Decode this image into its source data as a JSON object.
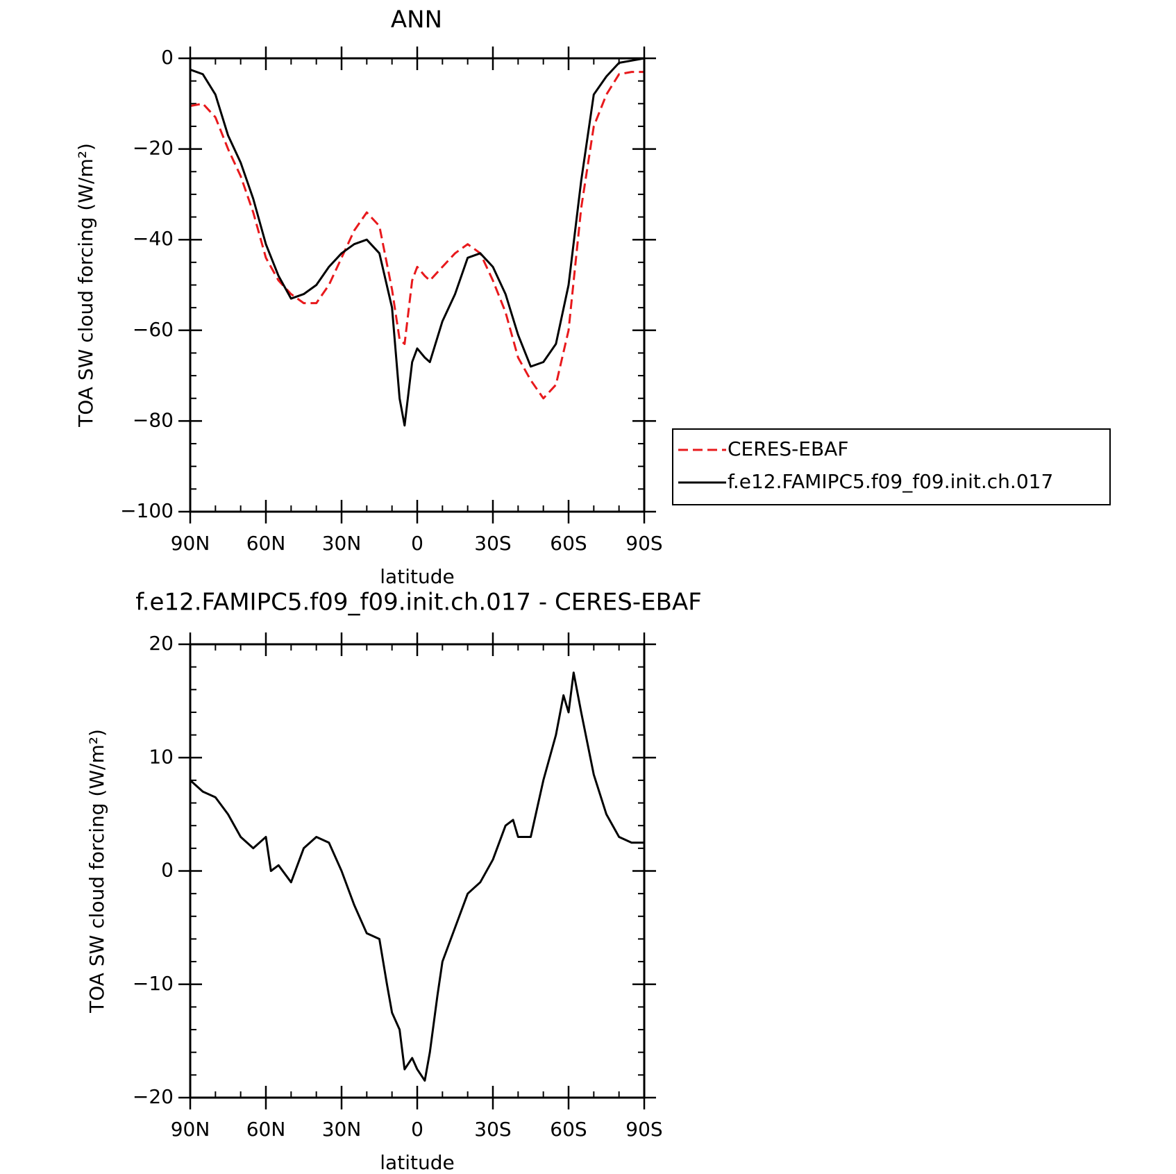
{
  "chart_data": [
    {
      "type": "line",
      "title": "ANN",
      "xlabel": "latitude",
      "ylabel": "TOA SW cloud forcing (W/m²)",
      "x": [
        90,
        85,
        80,
        75,
        70,
        65,
        60,
        55,
        50,
        45,
        40,
        35,
        30,
        25,
        20,
        15,
        10,
        7,
        5,
        2,
        0,
        -3,
        -5,
        -10,
        -15,
        -20,
        -25,
        -30,
        -35,
        -40,
        -45,
        -50,
        -55,
        -60,
        -65,
        -70,
        -75,
        -80,
        -85,
        -90
      ],
      "series": [
        {
          "name": "CERES-EBAF",
          "color": "#e8191c",
          "dash": true,
          "values": [
            -10.5,
            -10,
            -13,
            -20,
            -26,
            -34,
            -44,
            -49,
            -52,
            -54,
            -54,
            -50,
            -44,
            -38,
            -34,
            -37,
            -51,
            -62,
            -63,
            -49,
            -46,
            -48,
            -49,
            -46,
            -43,
            -41,
            -43,
            -49,
            -56,
            -66,
            -71,
            -75,
            -72,
            -60,
            -33,
            -15,
            -8,
            -3.5,
            -3,
            -3
          ]
        },
        {
          "name": "f.e12.FAMIPC5.f09_f09.init.ch.017",
          "color": "#000000",
          "dash": false,
          "values": [
            -2.5,
            -3.5,
            -8,
            -17,
            -23,
            -31,
            -41,
            -48,
            -53,
            -52,
            -50,
            -46,
            -43,
            -41,
            -40,
            -43,
            -55,
            -75,
            -81,
            -67,
            -64,
            -66,
            -67,
            -58,
            -52,
            -44,
            -43,
            -46,
            -52,
            -61,
            -68,
            -67,
            -63,
            -50,
            -27,
            -8,
            -4,
            -1,
            -0.5,
            0
          ]
        }
      ],
      "xlim": [
        90,
        -90
      ],
      "xticks": [
        {
          "value": 90,
          "label": "90N"
        },
        {
          "value": 60,
          "label": "60N"
        },
        {
          "value": 30,
          "label": "30N"
        },
        0,
        {
          "value": -30,
          "label": "30S"
        },
        {
          "value": -60,
          "label": "60S"
        },
        {
          "value": -90,
          "label": "90S"
        }
      ],
      "xminorticks": [
        80,
        70,
        50,
        40,
        20,
        10,
        -10,
        -20,
        -40,
        -50,
        -70,
        -80
      ],
      "ylim": [
        -100,
        0
      ],
      "yticks": [
        0,
        {
          "value": -20,
          "label": "−20"
        },
        {
          "value": -40,
          "label": "−40"
        },
        {
          "value": -60,
          "label": "−60"
        },
        {
          "value": -80,
          "label": "−80"
        },
        {
          "value": -100,
          "label": "−100"
        }
      ],
      "yminorticks": [
        -5,
        -10,
        -15,
        -25,
        -30,
        -35,
        -45,
        -50,
        -55,
        -65,
        -70,
        -75,
        -85,
        -90,
        -95
      ],
      "legend": "outside-lower-right"
    },
    {
      "type": "line",
      "title": "f.e12.FAMIPC5.f09_f09.init.ch.017 - CERES-EBAF",
      "xlabel": "latitude",
      "ylabel": "TOA SW cloud forcing (W/m²)",
      "x": [
        90,
        85,
        80,
        75,
        70,
        65,
        60,
        58,
        55,
        50,
        45,
        40,
        35,
        30,
        25,
        20,
        15,
        12,
        10,
        7,
        5,
        2,
        0,
        -3,
        -5,
        -8,
        -10,
        -15,
        -20,
        -25,
        -30,
        -35,
        -38,
        -40,
        -45,
        -50,
        -55,
        -58,
        -60,
        -62,
        -65,
        -70,
        -75,
        -80,
        -85,
        -90
      ],
      "series": [
        {
          "color": "#000000",
          "dash": false,
          "values": [
            8,
            7,
            6.5,
            5,
            3,
            2,
            3,
            0,
            0.5,
            -1,
            2,
            3,
            2.5,
            0,
            -3,
            -5.5,
            -6,
            -10,
            -12.5,
            -14,
            -17.5,
            -16.5,
            -17.5,
            -18.5,
            -16,
            -11,
            -8,
            -5,
            -2,
            -1,
            1,
            4,
            4.5,
            3,
            3,
            8,
            12,
            15.5,
            14,
            17.5,
            14,
            8.5,
            5,
            3,
            2.5,
            2.5
          ]
        }
      ],
      "xlim": [
        90,
        -90
      ],
      "xticks": [
        {
          "value": 90,
          "label": "90N"
        },
        {
          "value": 60,
          "label": "60N"
        },
        {
          "value": 30,
          "label": "30N"
        },
        0,
        {
          "value": -30,
          "label": "30S"
        },
        {
          "value": -60,
          "label": "60S"
        },
        {
          "value": -90,
          "label": "90S"
        }
      ],
      "xminorticks": [
        80,
        70,
        50,
        40,
        20,
        10,
        -10,
        -20,
        -40,
        -50,
        -70,
        -80
      ],
      "ylim": [
        -20,
        20
      ],
      "yticks": [
        20,
        10,
        0,
        {
          "value": -10,
          "label": "−10"
        },
        {
          "value": -20,
          "label": "−20"
        }
      ],
      "yminorticks": [
        18,
        16,
        14,
        12,
        8,
        6,
        4,
        2,
        -2,
        -4,
        -6,
        -8,
        -12,
        -14,
        -16,
        -18
      ]
    }
  ]
}
